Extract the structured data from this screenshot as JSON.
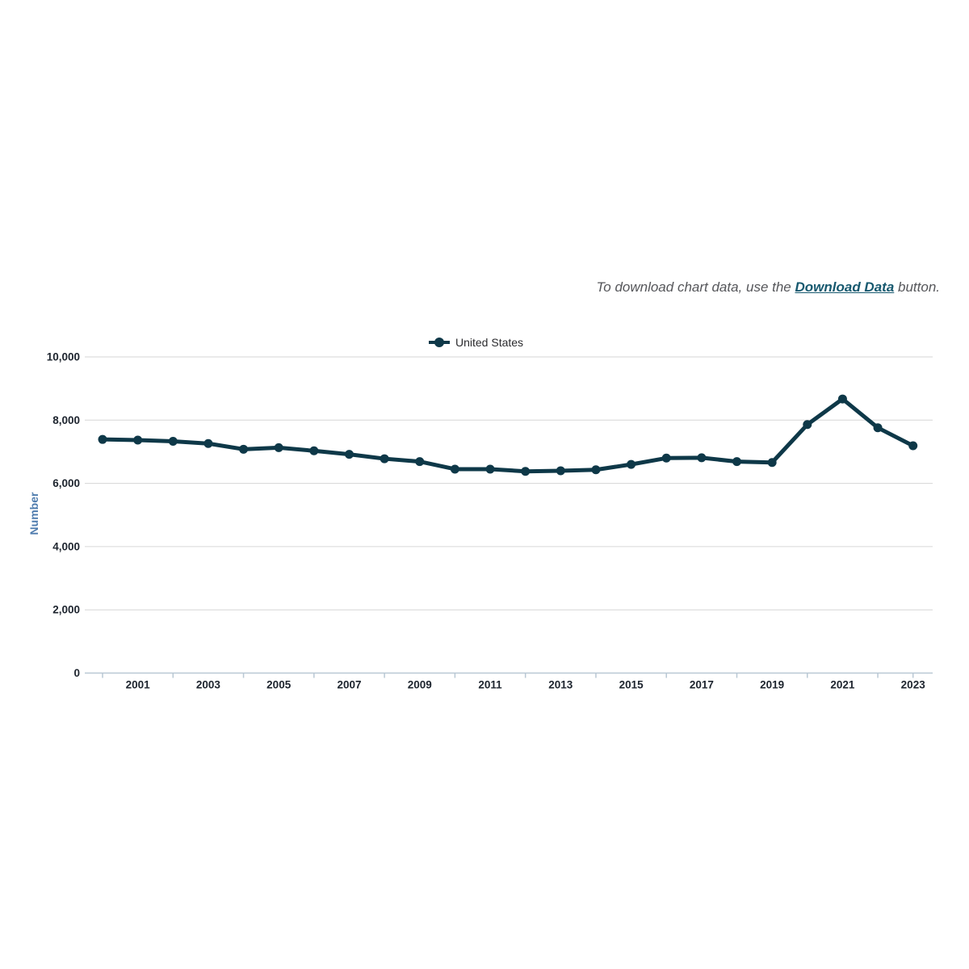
{
  "note": {
    "prefix": "To download chart data, use the ",
    "link_label": "Download Data",
    "suffix": " button."
  },
  "legend": {
    "series_label": "United States"
  },
  "colors": {
    "series": "#0e3848",
    "gridline": "#d6d6d6",
    "axis": "#b9c8d4",
    "tick_label": "#1d242e",
    "y_axis_title": "#4f7cae",
    "note_text": "#55565a",
    "link": "#17596f"
  },
  "chart_data": {
    "type": "line",
    "title": "",
    "xlabel": "",
    "ylabel": "Number",
    "legend_position": "top-center",
    "grid": "horizontal",
    "ylim": [
      0,
      10000
    ],
    "yticks": [
      0,
      2000,
      4000,
      6000,
      8000,
      10000
    ],
    "xtick_labels": [
      2001,
      2003,
      2005,
      2007,
      2009,
      2011,
      2013,
      2015,
      2017,
      2019,
      2021,
      2023
    ],
    "x": [
      2000,
      2001,
      2002,
      2003,
      2004,
      2005,
      2006,
      2007,
      2008,
      2009,
      2010,
      2011,
      2012,
      2013,
      2014,
      2015,
      2016,
      2017,
      2018,
      2019,
      2020,
      2021,
      2022,
      2023
    ],
    "series": [
      {
        "name": "United States",
        "values": [
          7390,
          7370,
          7330,
          7260,
          7080,
          7130,
          7030,
          6920,
          6780,
          6690,
          6450,
          6450,
          6380,
          6400,
          6430,
          6600,
          6800,
          6810,
          6690,
          6660,
          7860,
          8670,
          7760,
          7190
        ]
      }
    ]
  }
}
